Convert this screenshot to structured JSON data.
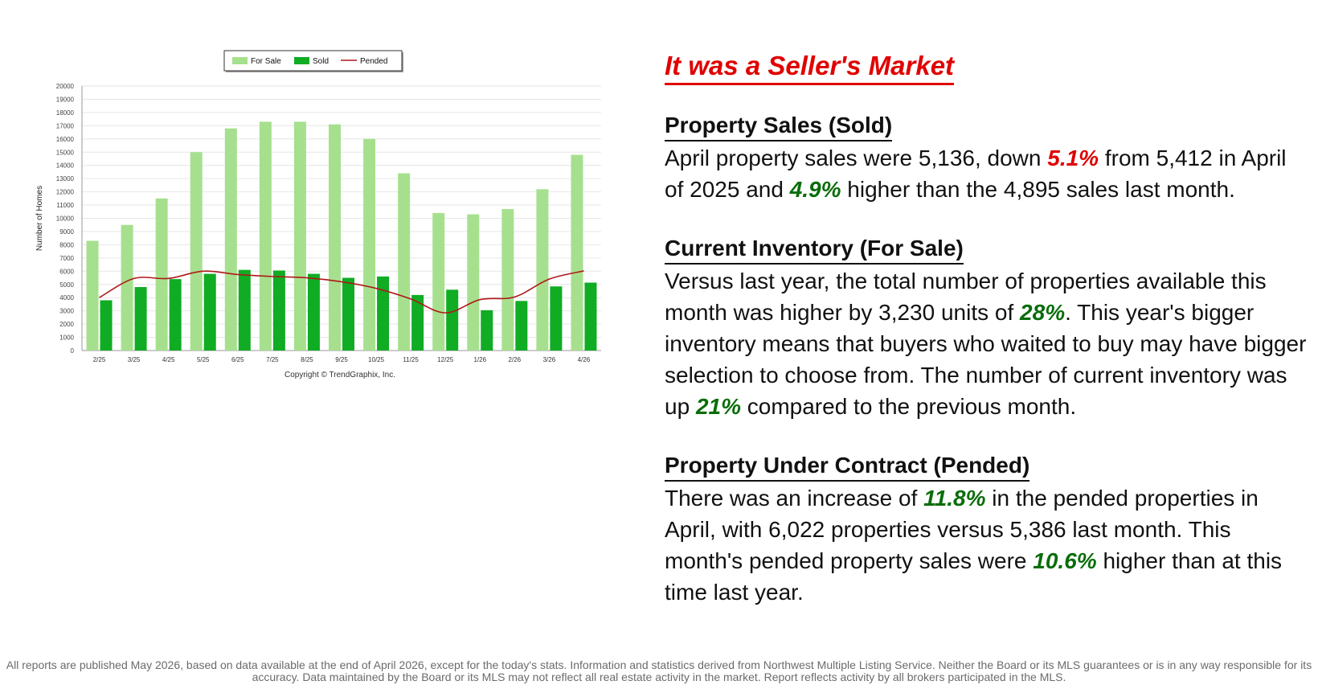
{
  "chart_data": {
    "type": "bar",
    "ylabel": "Number of Homes",
    "xlabel": "",
    "ylim": [
      0,
      20000
    ],
    "yticks": [
      0,
      1000,
      2000,
      3000,
      4000,
      5000,
      6000,
      7000,
      8000,
      9000,
      10000,
      11000,
      12000,
      13000,
      14000,
      15000,
      16000,
      17000,
      18000,
      19000,
      20000
    ],
    "categories": [
      "2/25",
      "3/25",
      "4/25",
      "5/25",
      "6/25",
      "7/25",
      "8/25",
      "9/25",
      "10/25",
      "11/25",
      "12/25",
      "1/26",
      "2/26",
      "3/26",
      "4/26"
    ],
    "series": [
      {
        "name": "For Sale",
        "type": "bar",
        "color": "#a6e08e",
        "values": [
          8300,
          9500,
          11500,
          15000,
          16800,
          17300,
          17300,
          17100,
          16000,
          13400,
          10400,
          10300,
          10700,
          12200,
          14800
        ]
      },
      {
        "name": "Sold",
        "type": "bar",
        "color": "#10ac24",
        "values": [
          3800,
          4800,
          5400,
          5800,
          6100,
          6050,
          5800,
          5500,
          5600,
          4200,
          4600,
          3050,
          3750,
          4850,
          5136
        ]
      },
      {
        "name": "Pended",
        "type": "line",
        "color": "#b01818",
        "values": [
          4000,
          5450,
          5450,
          6000,
          5750,
          5600,
          5500,
          5200,
          4700,
          3900,
          2850,
          3850,
          4050,
          5400,
          6022
        ]
      }
    ],
    "legend_position": "top",
    "grid": true,
    "copyright": "Copyright © TrendGraphix, Inc."
  },
  "headline": "It was a Seller's Market",
  "sections": {
    "sold": {
      "title": "Property Sales (Sold)",
      "p1": "April property sales were 5,136, down ",
      "pct1": "5.1%",
      "p2": " from 5,412 in April of 2025 and ",
      "pct2": "4.9%",
      "p3": " higher than the 4,895 sales last month."
    },
    "inventory": {
      "title": "Current Inventory (For Sale)",
      "p1": "Versus last year, the total number of properties available this month was higher by 3,230 units of ",
      "pct1": "28%",
      "p2": ". This year's bigger inventory means that buyers who waited to buy may have bigger selection to choose from. The number of current inventory was up ",
      "pct2": "21%",
      "p3": " compared to the previous month."
    },
    "pended": {
      "title": "Property Under Contract (Pended)",
      "p1": "There was an increase of ",
      "pct1": "11.8%",
      "p2": " in the pended properties in April, with 6,022 properties versus 5,386 last month. This month's pended property sales were ",
      "pct2": "10.6%",
      "p3": " higher than at this time last year."
    }
  },
  "disclaimer": "All reports are published May 2026, based on data available at the end of April 2026, except for the today's stats. Information and statistics derived from Northwest Multiple Listing Service. Neither the Board or its MLS guarantees or is in any way responsible for its accuracy. Data maintained by the Board or its MLS may not reflect all real estate activity in the market. Report reflects activity by all brokers participated in the MLS.",
  "colors": {
    "accent_red": "#e00000",
    "accent_green": "#0a6d0a"
  }
}
